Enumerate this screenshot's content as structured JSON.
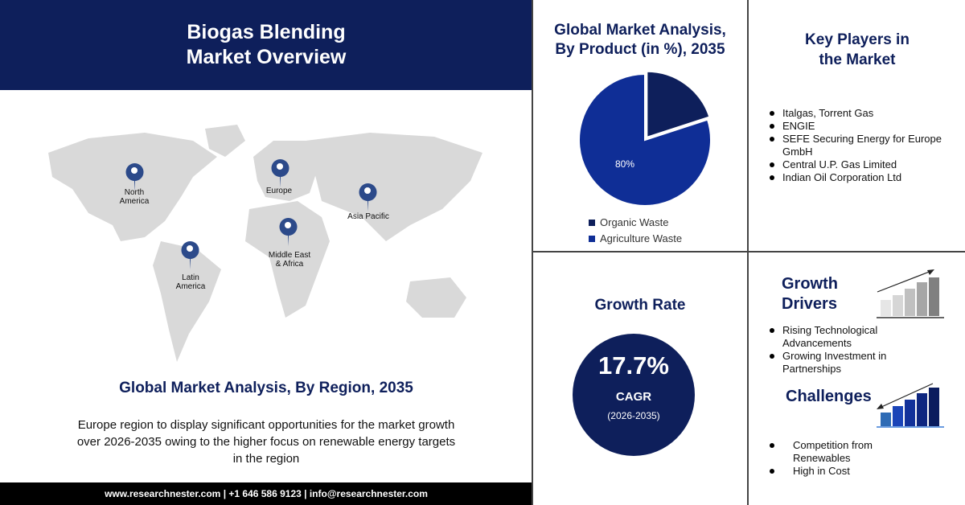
{
  "header": {
    "title_line1": "Biogas Blending",
    "title_line2": "Market Overview"
  },
  "map": {
    "regions": [
      {
        "label1": "North",
        "label2": "America"
      },
      {
        "label1": "Europe",
        "label2": ""
      },
      {
        "label1": "Asia Pacific",
        "label2": ""
      },
      {
        "label1": "Middle East",
        "label2": "& Africa"
      },
      {
        "label1": "Latin",
        "label2": "America"
      }
    ],
    "pin_color": "#2c4a8a",
    "land_color": "#d9d9d9"
  },
  "region_section": {
    "title": "Global Market Analysis, By Region, 2035",
    "description": "Europe region to display significant opportunities for the market growth over 2026-2035 owing to the higher focus on renewable energy targets  in the region"
  },
  "footer": {
    "text": "www.researchnester.com | +1 646 586 9123 | info@researchnester.com"
  },
  "product": {
    "title_line1": "Global Market Analysis,",
    "title_line2": "By Product (in %), 2035"
  },
  "chart_data": {
    "type": "pie",
    "title": "Global Market Analysis, By Product (in %), 2035",
    "slices": [
      {
        "name": "Organic Waste",
        "value": 20,
        "color": "#0e1f5b"
      },
      {
        "name": "Agriculture Waste",
        "value": 80,
        "color": "#0f2e96",
        "label": "80%"
      }
    ],
    "legend_position": "bottom"
  },
  "key_players": {
    "title_line1": "Key Players in",
    "title_line2": "the Market",
    "items": [
      "Italgas, Torrent Gas",
      " ENGIE",
      "SEFE Securing Energy for Europe GmbH",
      "Central U.P. Gas Limited",
      "Indian Oil Corporation Ltd"
    ]
  },
  "growth_rate": {
    "title": "Growth Rate",
    "value": "17.7%",
    "label": "CAGR",
    "period": "(2026-2035)"
  },
  "drivers": {
    "title_line1": "Growth",
    "title_line2": "Drivers",
    "items": [
      "Rising Technological Advancements",
      "Growing Investment in Partnerships"
    ]
  },
  "challenges": {
    "title": "Challenges",
    "items": [
      "Competition from Renewables",
      "High in Cost"
    ]
  },
  "colors": {
    "navy": "#0e1f5b",
    "blue": "#0f2e96"
  }
}
